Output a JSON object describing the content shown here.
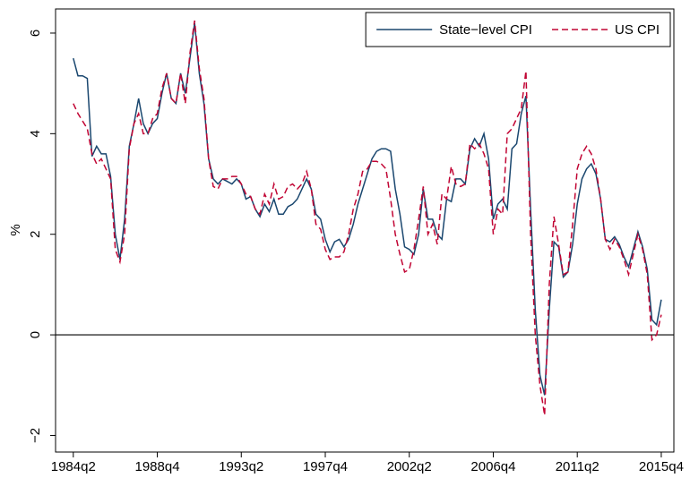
{
  "chart_data": {
    "type": "line",
    "y_label": "%",
    "categories": [
      "1984q2",
      null,
      null,
      null,
      null,
      null,
      null,
      null,
      null,
      null,
      null,
      null,
      null,
      null,
      null,
      null,
      null,
      null,
      "1988q4",
      null,
      null,
      null,
      null,
      null,
      null,
      null,
      null,
      null,
      null,
      null,
      null,
      null,
      null,
      null,
      null,
      null,
      "1993q2",
      null,
      null,
      null,
      null,
      null,
      null,
      null,
      null,
      null,
      null,
      null,
      null,
      null,
      null,
      null,
      null,
      null,
      "1997q4",
      null,
      null,
      null,
      null,
      null,
      null,
      null,
      null,
      null,
      null,
      null,
      null,
      null,
      null,
      null,
      null,
      null,
      "2002q2",
      null,
      null,
      null,
      null,
      null,
      null,
      null,
      null,
      null,
      null,
      null,
      null,
      null,
      null,
      null,
      null,
      null,
      "2006q4",
      null,
      null,
      null,
      null,
      null,
      null,
      null,
      null,
      null,
      null,
      null,
      null,
      null,
      null,
      null,
      null,
      null,
      "2011q2",
      null,
      null,
      null,
      null,
      null,
      null,
      null,
      null,
      null,
      null,
      null,
      null,
      null,
      null,
      null,
      null,
      null,
      "2015q4"
    ],
    "series": [
      {
        "name": "State−level CPI",
        "color": "#1a476f",
        "style": "solid",
        "values": [
          5.5,
          5.15,
          5.15,
          5.1,
          3.55,
          3.75,
          3.6,
          3.6,
          3.15,
          2.0,
          1.5,
          2.3,
          3.75,
          4.2,
          4.7,
          4.2,
          4.0,
          4.2,
          4.3,
          4.8,
          5.2,
          4.7,
          4.6,
          5.2,
          4.8,
          5.5,
          6.2,
          5.2,
          4.6,
          3.5,
          3.1,
          3.0,
          3.1,
          3.05,
          3.0,
          3.1,
          3.0,
          2.7,
          2.75,
          2.5,
          2.35,
          2.6,
          2.45,
          2.7,
          2.4,
          2.4,
          2.55,
          2.6,
          2.7,
          2.9,
          3.1,
          2.9,
          2.4,
          2.3,
          1.9,
          1.65,
          1.85,
          1.9,
          1.75,
          1.9,
          2.2,
          2.6,
          2.9,
          3.2,
          3.5,
          3.65,
          3.7,
          3.7,
          3.65,
          2.9,
          2.4,
          1.75,
          1.7,
          1.6,
          2.0,
          2.9,
          2.3,
          2.3,
          2.0,
          1.9,
          2.7,
          2.65,
          3.1,
          3.1,
          3.0,
          3.7,
          3.9,
          3.75,
          4.0,
          3.5,
          2.3,
          2.6,
          2.7,
          2.5,
          3.7,
          3.8,
          4.4,
          4.75,
          2.5,
          0.5,
          -0.8,
          -1.2,
          0.5,
          1.85,
          1.75,
          1.15,
          1.25,
          1.8,
          2.6,
          3.1,
          3.3,
          3.4,
          3.2,
          2.7,
          1.9,
          1.85,
          1.95,
          1.8,
          1.55,
          1.35,
          1.7,
          2.05,
          1.75,
          1.3,
          0.3,
          0.2,
          0.7
        ]
      },
      {
        "name": "US CPI",
        "color": "#c10534",
        "style": "dashed",
        "values": [
          4.6,
          4.4,
          4.25,
          4.1,
          3.6,
          3.4,
          3.5,
          3.3,
          3.1,
          1.7,
          1.45,
          2.0,
          3.7,
          4.2,
          4.4,
          4.0,
          4.0,
          4.3,
          4.4,
          4.9,
          5.2,
          4.7,
          4.6,
          5.2,
          4.6,
          5.6,
          6.25,
          5.3,
          4.7,
          3.5,
          2.95,
          2.9,
          3.1,
          3.1,
          3.15,
          3.15,
          3.0,
          2.8,
          2.75,
          2.5,
          2.4,
          2.8,
          2.6,
          3.0,
          2.7,
          2.75,
          2.95,
          3.0,
          2.9,
          3.0,
          3.25,
          2.9,
          2.2,
          2.1,
          1.7,
          1.5,
          1.55,
          1.55,
          1.65,
          2.0,
          2.5,
          2.8,
          3.25,
          3.3,
          3.45,
          3.45,
          3.4,
          3.3,
          2.7,
          2.0,
          1.6,
          1.25,
          1.3,
          1.7,
          2.3,
          2.95,
          2.0,
          2.2,
          1.8,
          2.8,
          2.7,
          3.35,
          3.0,
          2.95,
          3.0,
          3.8,
          3.7,
          3.8,
          3.6,
          3.3,
          2.0,
          2.5,
          2.4,
          4.0,
          4.1,
          4.3,
          4.5,
          5.25,
          2.0,
          0.0,
          -1.0,
          -1.6,
          1.0,
          2.35,
          1.8,
          1.2,
          1.25,
          2.2,
          3.3,
          3.6,
          3.75,
          3.6,
          3.3,
          2.7,
          1.9,
          1.7,
          1.9,
          1.75,
          1.5,
          1.2,
          1.6,
          2.0,
          1.7,
          1.2,
          -0.1,
          0.0,
          0.4
        ]
      }
    ],
    "xlim": [
      -3.8,
      128.7
    ],
    "ylim": [
      -2.33,
      6.48
    ],
    "yticks": [
      {
        "value": -2,
        "label": "−2"
      },
      0,
      2,
      4,
      6
    ],
    "reference_line": 0,
    "legend": "top-right"
  }
}
